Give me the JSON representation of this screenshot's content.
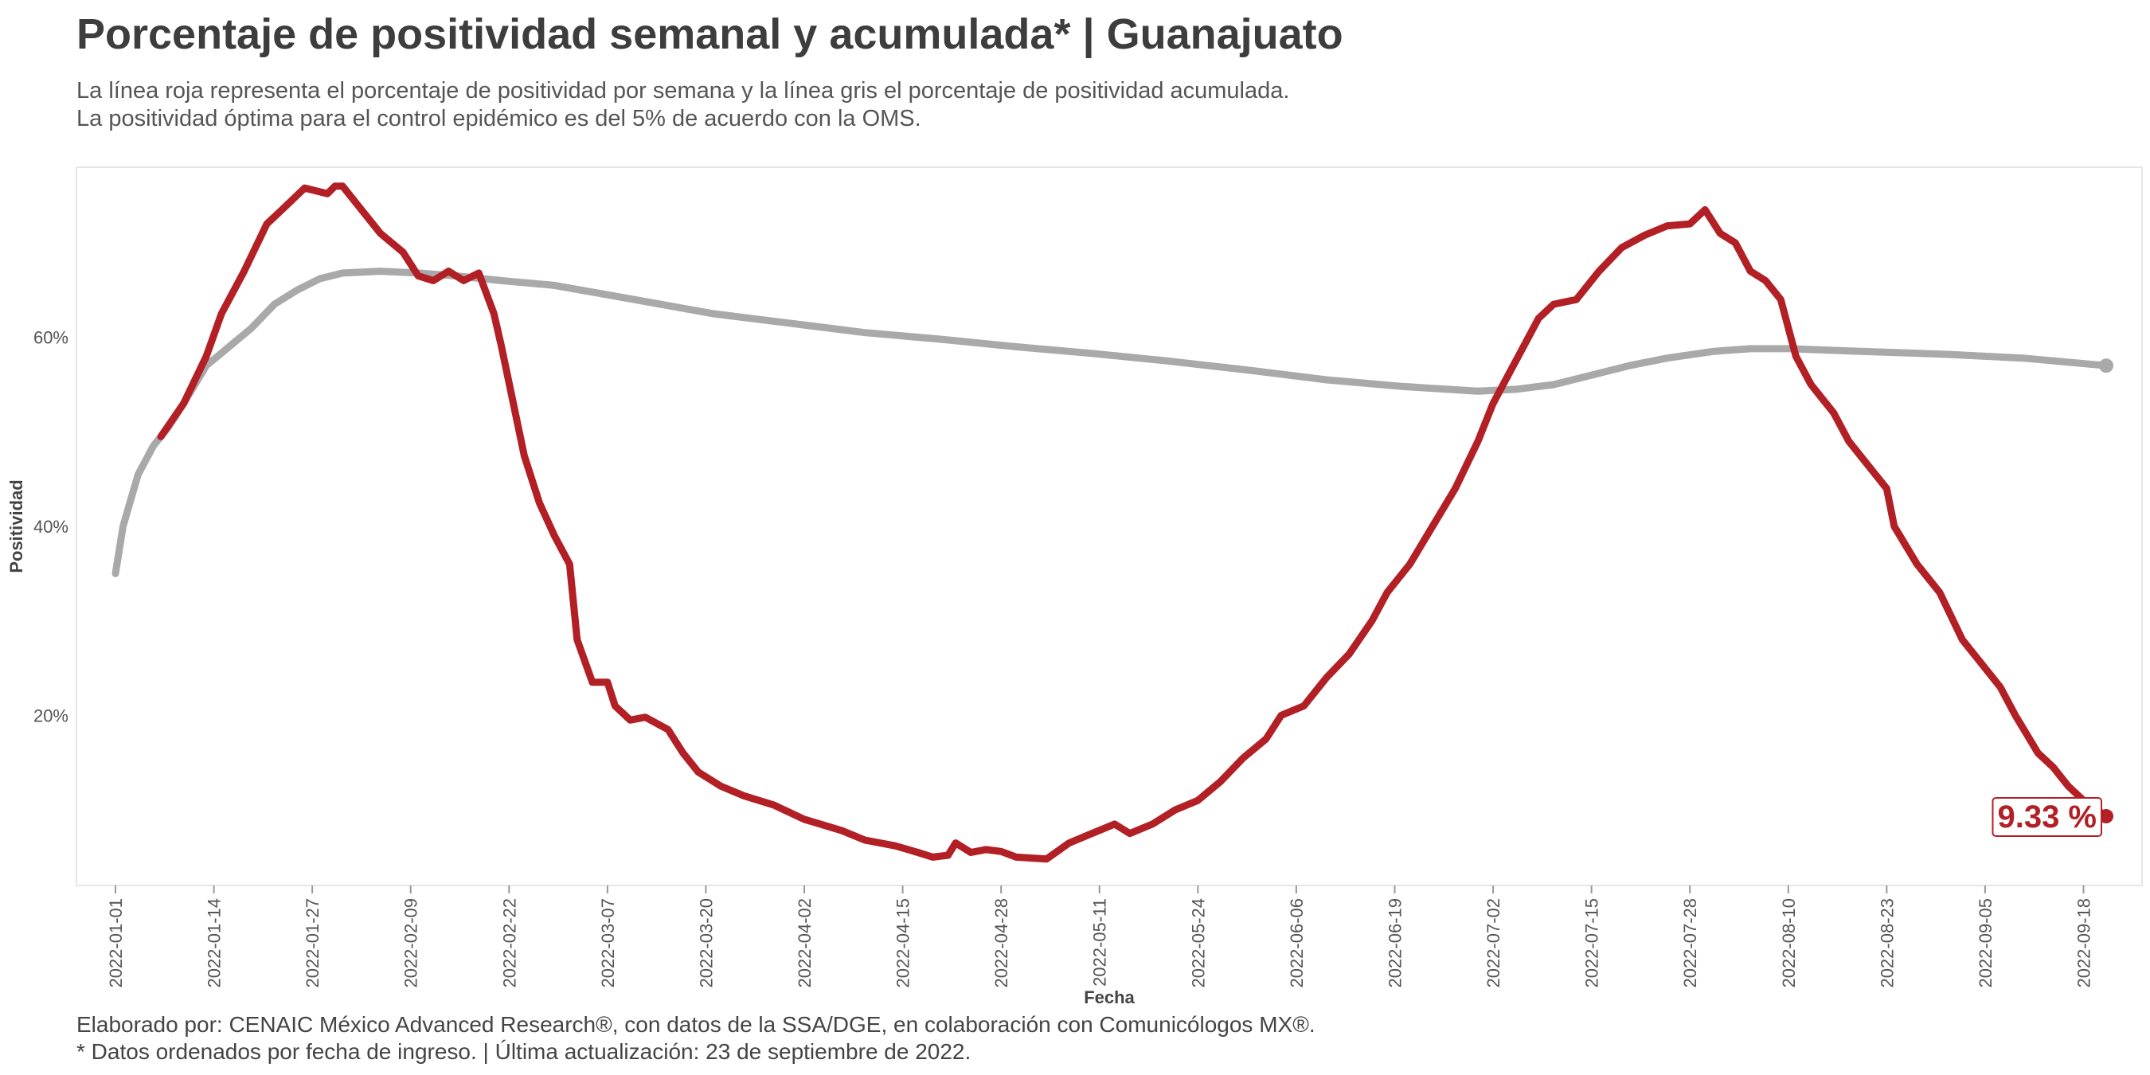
{
  "title": "Porcentaje de positividad semanal y acumulada* | Guanajuato",
  "subtitle_lines": [
    "La línea roja representa el porcentaje de positividad por semana y la línea gris el porcentaje de positividad acumulada.",
    "La positividad óptima para el control epidémico es del 5% de acuerdo con la OMS."
  ],
  "caption_lines": [
    "Elaborado por: CENAIC México Advanced Research®, con datos de la SSA/DGE, en colaboración con Comunicólogos MX®.",
    "* Datos ordenados por fecha de ingreso. | Última actualización: 23 de septiembre de 2022."
  ],
  "colors": {
    "weekly": "#b22026",
    "cumulative": "#a9a9a9",
    "panel_border": "#e6e6e6"
  },
  "chart_data": {
    "type": "line",
    "xlabel": "Fecha",
    "ylabel": "Positividad",
    "x_start": "2022-01-01",
    "x_end": "2022-09-21",
    "x_ticks": [
      "2022-01-01",
      "2022-01-14",
      "2022-01-27",
      "2022-02-09",
      "2022-02-22",
      "2022-03-07",
      "2022-03-20",
      "2022-04-02",
      "2022-04-15",
      "2022-04-28",
      "2022-05-11",
      "2022-05-24",
      "2022-06-06",
      "2022-06-19",
      "2022-07-02",
      "2022-07-15",
      "2022-07-28",
      "2022-08-10",
      "2022-08-23",
      "2022-09-05",
      "2022-09-18"
    ],
    "y_ticks": [
      20,
      40,
      60
    ],
    "y_tick_labels": [
      "20%",
      "40%",
      "60%"
    ],
    "ylim": [
      2,
      78
    ],
    "grid": false,
    "end_label": "9.33 %",
    "series": [
      {
        "key": "weekly",
        "points": [
          [
            "2022-01-07",
            49.5
          ],
          [
            "2022-01-10",
            53
          ],
          [
            "2022-01-13",
            58
          ],
          [
            "2022-01-15",
            62.5
          ],
          [
            "2022-01-18",
            67
          ],
          [
            "2022-01-21",
            72
          ],
          [
            "2022-01-23",
            73.5
          ],
          [
            "2022-01-26",
            75.8
          ],
          [
            "2022-01-29",
            75.2
          ],
          [
            "2022-01-30",
            76
          ],
          [
            "2022-01-31",
            76
          ],
          [
            "2022-02-02",
            74
          ],
          [
            "2022-02-05",
            71
          ],
          [
            "2022-02-08",
            69
          ],
          [
            "2022-02-10",
            66.5
          ],
          [
            "2022-02-12",
            66
          ],
          [
            "2022-02-14",
            67
          ],
          [
            "2022-02-16",
            66
          ],
          [
            "2022-02-18",
            66.8
          ],
          [
            "2022-02-20",
            62.5
          ],
          [
            "2022-02-21",
            59
          ],
          [
            "2022-02-24",
            47.5
          ],
          [
            "2022-02-26",
            42.5
          ],
          [
            "2022-02-28",
            39
          ],
          [
            "2022-03-02",
            36
          ],
          [
            "2022-03-03",
            28
          ],
          [
            "2022-03-05",
            23.5
          ],
          [
            "2022-03-07",
            23.5
          ],
          [
            "2022-03-08",
            21
          ],
          [
            "2022-03-10",
            19.5
          ],
          [
            "2022-03-12",
            19.8
          ],
          [
            "2022-03-15",
            18.5
          ],
          [
            "2022-03-17",
            16
          ],
          [
            "2022-03-19",
            14
          ],
          [
            "2022-03-22",
            12.5
          ],
          [
            "2022-03-25",
            11.5
          ],
          [
            "2022-03-29",
            10.5
          ],
          [
            "2022-04-02",
            9
          ],
          [
            "2022-04-07",
            7.8
          ],
          [
            "2022-04-10",
            6.8
          ],
          [
            "2022-04-14",
            6.2
          ],
          [
            "2022-04-17",
            5.5
          ],
          [
            "2022-04-19",
            5
          ],
          [
            "2022-04-21",
            5.2
          ],
          [
            "2022-04-22",
            6.5
          ],
          [
            "2022-04-24",
            5.5
          ],
          [
            "2022-04-26",
            5.8
          ],
          [
            "2022-04-28",
            5.6
          ],
          [
            "2022-04-30",
            5
          ],
          [
            "2022-05-04",
            4.8
          ],
          [
            "2022-05-07",
            6.5
          ],
          [
            "2022-05-10",
            7.5
          ],
          [
            "2022-05-13",
            8.5
          ],
          [
            "2022-05-15",
            7.5
          ],
          [
            "2022-05-18",
            8.5
          ],
          [
            "2022-05-21",
            10
          ],
          [
            "2022-05-24",
            11
          ],
          [
            "2022-05-27",
            13
          ],
          [
            "2022-05-30",
            15.5
          ],
          [
            "2022-06-02",
            17.5
          ],
          [
            "2022-06-04",
            20
          ],
          [
            "2022-06-07",
            21
          ],
          [
            "2022-06-10",
            24
          ],
          [
            "2022-06-13",
            26.5
          ],
          [
            "2022-06-16",
            30
          ],
          [
            "2022-06-18",
            33
          ],
          [
            "2022-06-21",
            36
          ],
          [
            "2022-06-24",
            40
          ],
          [
            "2022-06-27",
            44
          ],
          [
            "2022-06-30",
            49
          ],
          [
            "2022-07-02",
            53
          ],
          [
            "2022-07-04",
            56
          ],
          [
            "2022-07-06",
            59
          ],
          [
            "2022-07-08",
            62
          ],
          [
            "2022-07-10",
            63.5
          ],
          [
            "2022-07-13",
            64
          ],
          [
            "2022-07-16",
            67
          ],
          [
            "2022-07-19",
            69.5
          ],
          [
            "2022-07-22",
            70.8
          ],
          [
            "2022-07-25",
            71.8
          ],
          [
            "2022-07-28",
            72
          ],
          [
            "2022-07-30",
            73.5
          ],
          [
            "2022-08-01",
            71
          ],
          [
            "2022-08-03",
            70
          ],
          [
            "2022-08-05",
            67
          ],
          [
            "2022-08-07",
            66
          ],
          [
            "2022-08-09",
            64
          ],
          [
            "2022-08-11",
            58
          ],
          [
            "2022-08-13",
            55
          ],
          [
            "2022-08-16",
            52
          ],
          [
            "2022-08-18",
            49
          ],
          [
            "2022-08-21",
            46
          ],
          [
            "2022-08-23",
            44
          ],
          [
            "2022-08-24",
            40
          ],
          [
            "2022-08-27",
            36
          ],
          [
            "2022-08-30",
            33
          ],
          [
            "2022-09-02",
            28
          ],
          [
            "2022-09-05",
            25
          ],
          [
            "2022-09-07",
            23
          ],
          [
            "2022-09-09",
            20
          ],
          [
            "2022-09-12",
            16
          ],
          [
            "2022-09-14",
            14.5
          ],
          [
            "2022-09-16",
            12.5
          ],
          [
            "2022-09-18",
            11
          ],
          [
            "2022-09-21",
            9.33
          ]
        ]
      },
      {
        "key": "cumulative",
        "points": [
          [
            "2022-01-01",
            35
          ],
          [
            "2022-01-02",
            40
          ],
          [
            "2022-01-04",
            45.5
          ],
          [
            "2022-01-06",
            48.5
          ],
          [
            "2022-01-08",
            50.5
          ],
          [
            "2022-01-10",
            53
          ],
          [
            "2022-01-13",
            57
          ],
          [
            "2022-01-16",
            59
          ],
          [
            "2022-01-19",
            61
          ],
          [
            "2022-01-22",
            63.5
          ],
          [
            "2022-01-25",
            65
          ],
          [
            "2022-01-28",
            66.2
          ],
          [
            "2022-01-31",
            66.8
          ],
          [
            "2022-02-05",
            67
          ],
          [
            "2022-02-10",
            66.8
          ],
          [
            "2022-02-15",
            66.5
          ],
          [
            "2022-02-21",
            66
          ],
          [
            "2022-02-28",
            65.5
          ],
          [
            "2022-03-07",
            64.5
          ],
          [
            "2022-03-14",
            63.5
          ],
          [
            "2022-03-21",
            62.5
          ],
          [
            "2022-03-31",
            61.5
          ],
          [
            "2022-04-10",
            60.5
          ],
          [
            "2022-04-20",
            59.8
          ],
          [
            "2022-04-30",
            59
          ],
          [
            "2022-05-10",
            58.3
          ],
          [
            "2022-05-20",
            57.5
          ],
          [
            "2022-05-31",
            56.5
          ],
          [
            "2022-06-10",
            55.5
          ],
          [
            "2022-06-20",
            54.8
          ],
          [
            "2022-06-30",
            54.3
          ],
          [
            "2022-07-05",
            54.5
          ],
          [
            "2022-07-10",
            55
          ],
          [
            "2022-07-15",
            56
          ],
          [
            "2022-07-20",
            57
          ],
          [
            "2022-07-25",
            57.8
          ],
          [
            "2022-07-31",
            58.5
          ],
          [
            "2022-08-05",
            58.8
          ],
          [
            "2022-08-10",
            58.8
          ],
          [
            "2022-08-20",
            58.5
          ],
          [
            "2022-08-31",
            58.2
          ],
          [
            "2022-09-10",
            57.8
          ],
          [
            "2022-09-21",
            57
          ]
        ]
      }
    ]
  }
}
